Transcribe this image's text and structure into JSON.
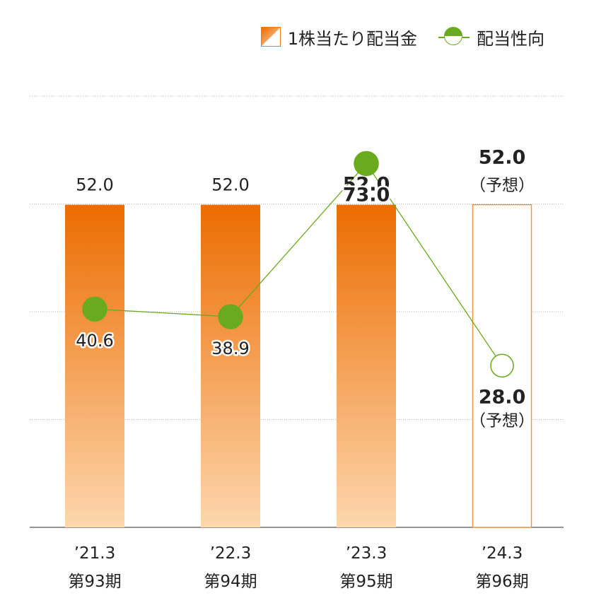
{
  "chart_data": {
    "type": "bar",
    "categories": [
      "’21.3",
      "’22.3",
      "’23.3",
      "’24.3"
    ],
    "period_labels": [
      "第93期",
      "第94期",
      "第95期",
      "第96期"
    ],
    "series": [
      {
        "name": "1株当たり配当金",
        "kind": "bar",
        "values": [
          52.0,
          52.0,
          52.0,
          52.0
        ],
        "labels": [
          "52.0",
          "52.0",
          "52.0",
          "52.0"
        ],
        "forecast": [
          false,
          false,
          false,
          true
        ],
        "color": "#ec6c00",
        "color_light": "#fdd7ae"
      },
      {
        "name": "配当性向",
        "kind": "line",
        "values": [
          40.6,
          38.9,
          73.0,
          28.0
        ],
        "labels": [
          "40.6",
          "38.9",
          "73.0",
          "28.0"
        ],
        "forecast": [
          false,
          false,
          false,
          true
        ],
        "color": "#6aaa1e"
      }
    ],
    "forecast_note": "（予想）",
    "bar_ylim": [
      0,
      69.5
    ],
    "line_ylim": [
      -8,
      88
    ],
    "grid": true,
    "legend": "top-right"
  }
}
